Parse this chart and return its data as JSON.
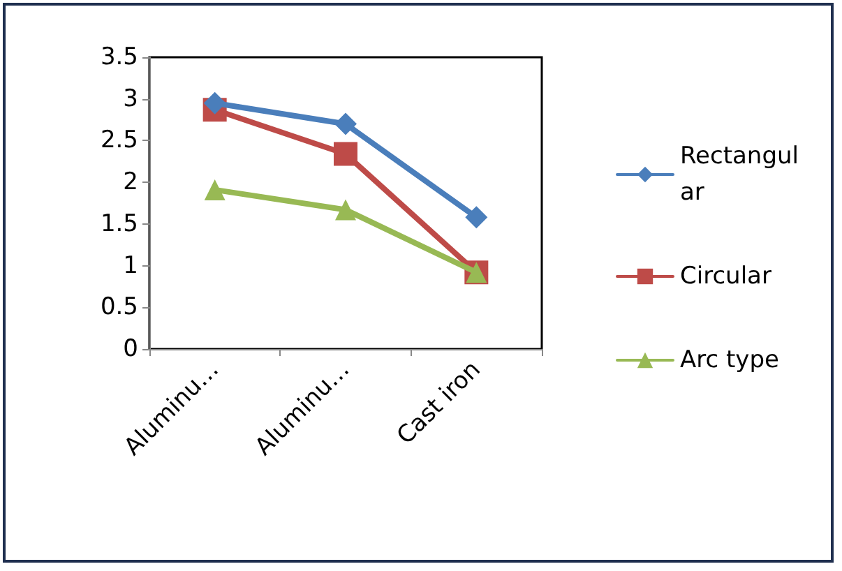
{
  "chart_data": {
    "type": "line",
    "categories": [
      "Aluminu…",
      "Aluminu…",
      "Cast iron"
    ],
    "series": [
      {
        "name": "Rectangular",
        "color": "#4a7ebb",
        "marker": "diamond",
        "values": [
          2.95,
          2.7,
          1.58
        ]
      },
      {
        "name": "Circular",
        "color": "#be4b48",
        "marker": "square",
        "values": [
          2.87,
          2.34,
          0.92
        ]
      },
      {
        "name": "Arc type",
        "color": "#98b954",
        "marker": "triangle",
        "values": [
          1.91,
          1.67,
          0.92
        ]
      }
    ],
    "ylim": [
      0,
      3.5
    ],
    "yticks": [
      0,
      0.5,
      1,
      1.5,
      2,
      2.5,
      3,
      3.5
    ],
    "grid": false,
    "legend": "right"
  }
}
